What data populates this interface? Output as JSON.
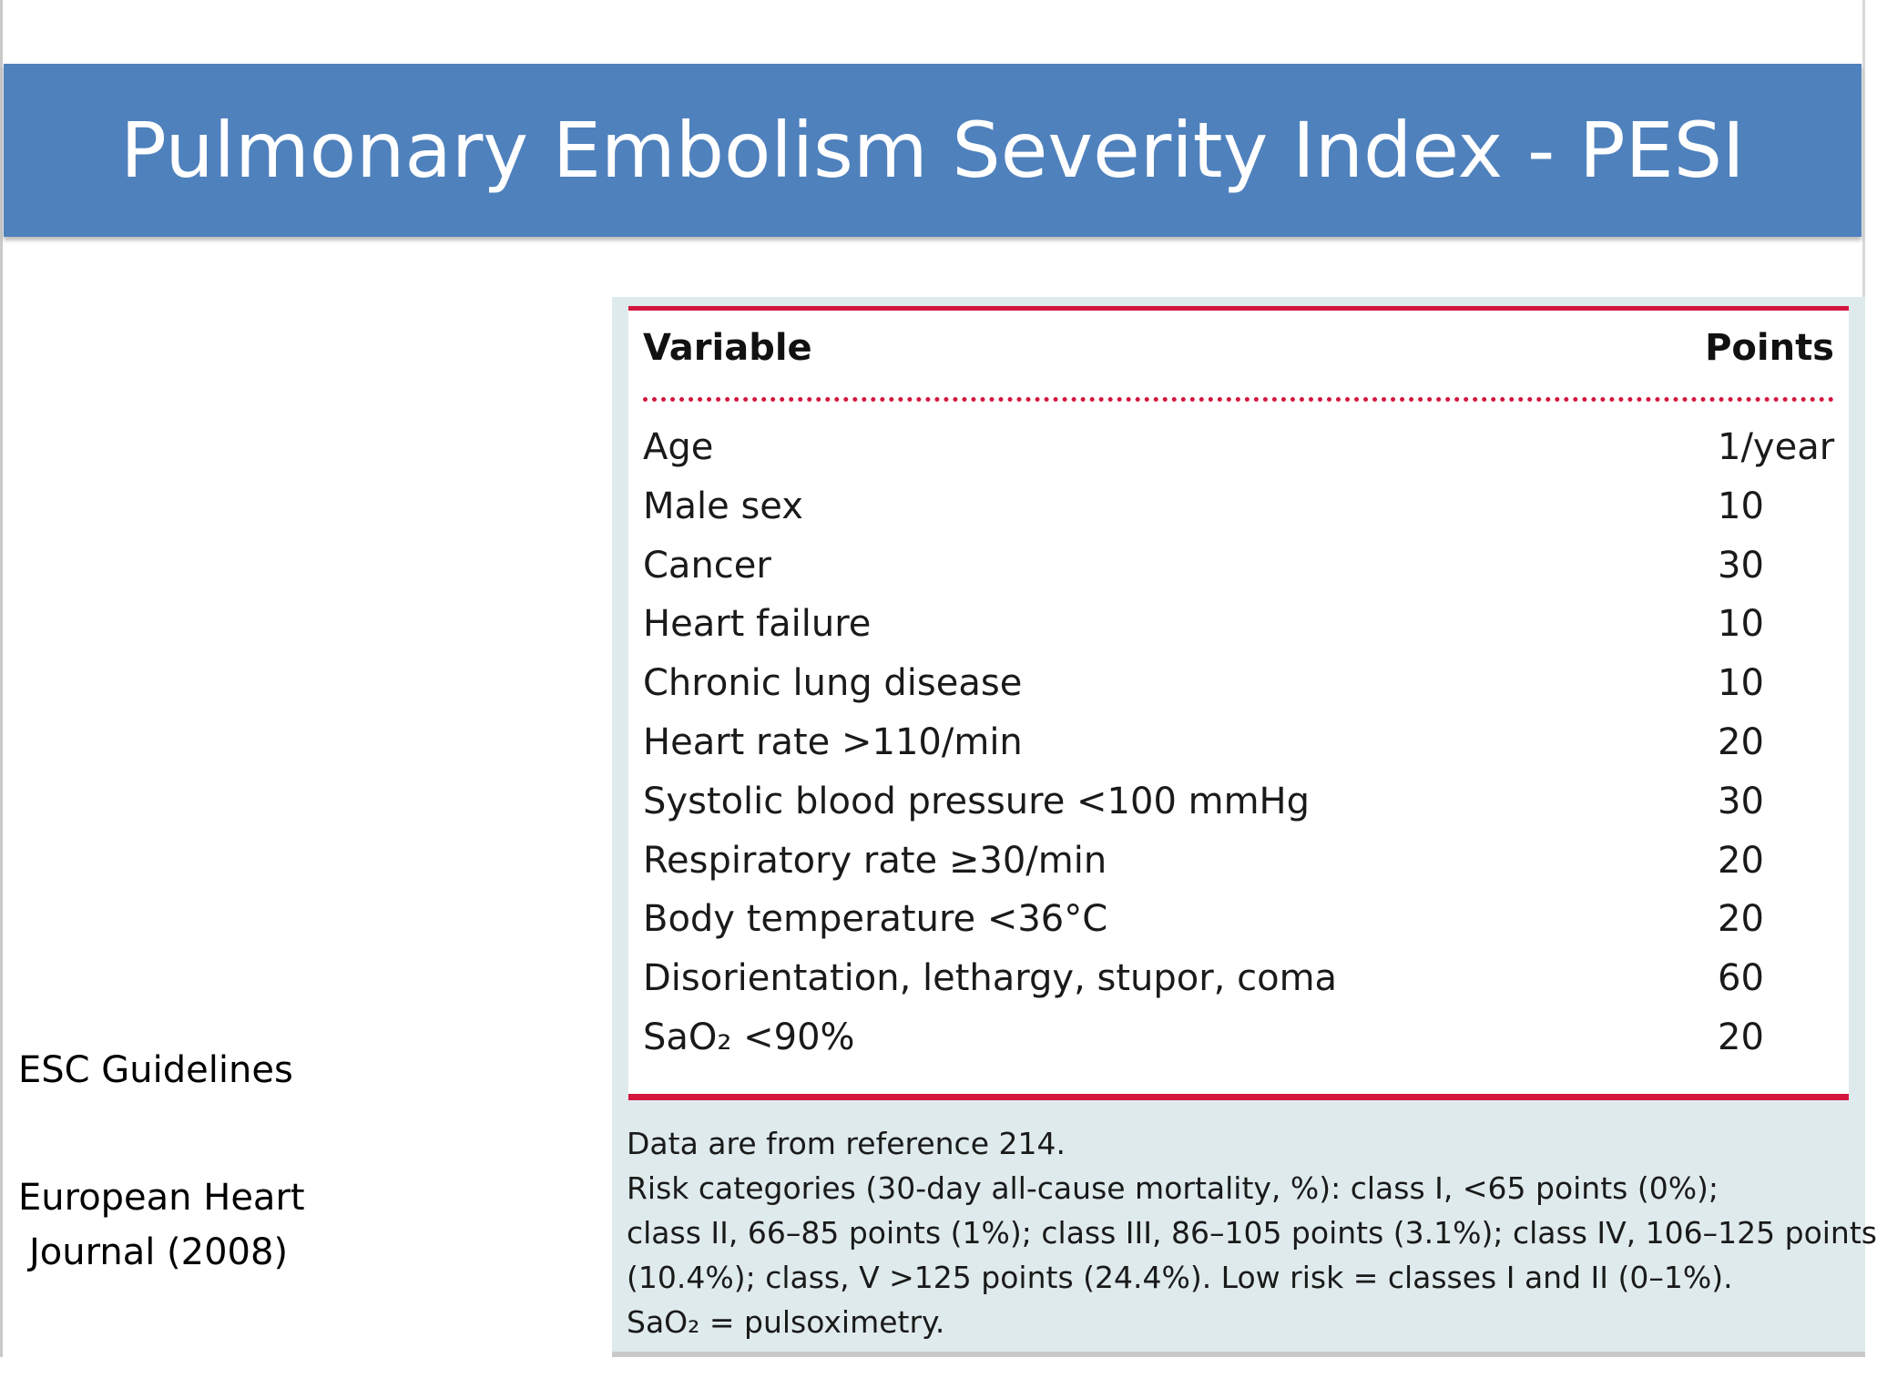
{
  "slide": {
    "title": "Pulmonary Embolism Severity Index - PESI",
    "citation_1": "ESC Guidelines",
    "citation_2_line1": "European Heart",
    "citation_2_line2": "Journal (2008)"
  },
  "table": {
    "header_variable": "Variable",
    "header_points": "Points",
    "rows": [
      {
        "variable": "Age",
        "points": "1/year"
      },
      {
        "variable": "Male sex",
        "points": "10"
      },
      {
        "variable": "Cancer",
        "points": "30"
      },
      {
        "variable": "Heart failure",
        "points": "10"
      },
      {
        "variable": "Chronic lung disease",
        "points": "10"
      },
      {
        "variable": "Heart rate >110/min",
        "points": "20"
      },
      {
        "variable": "Systolic blood pressure <100 mmHg",
        "points": "30"
      },
      {
        "variable": "Respiratory rate ≥30/min",
        "points": "20"
      },
      {
        "variable": "Body temperature <36°C",
        "points": "20"
      },
      {
        "variable": "Disorientation, lethargy, stupor, coma",
        "points": "60"
      },
      {
        "variable": "SaO₂ <90%",
        "points": "20"
      }
    ],
    "notes": [
      "Data are from reference 214.",
      "Risk categories (30-day all-cause mortality, %): class I, <65 points (0%);",
      "class II, 66–85 points (1%); class III, 86–105 points (3.1%); class IV, 106–125 points",
      "(10.4%); class, V >125 points (24.4%). Low risk = classes I and II (0–1%).",
      "SaO₂ = pulsoximetry."
    ]
  },
  "colors": {
    "banner": "#4f81bd",
    "rule": "#d4163f",
    "panel": "#dfeaed"
  }
}
